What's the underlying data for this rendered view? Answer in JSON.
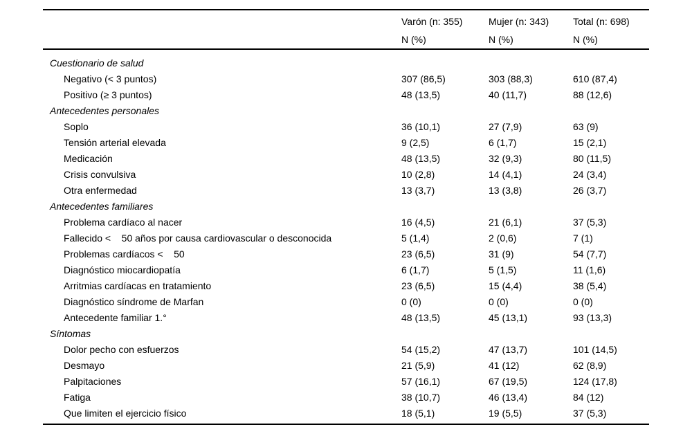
{
  "table": {
    "columns": [
      {
        "title": "Varón (n: 355)",
        "subtitle": "N (%)"
      },
      {
        "title": "Mujer (n: 343)",
        "subtitle": "N (%)"
      },
      {
        "title": "Total (n: 698)",
        "subtitle": "N (%)"
      }
    ],
    "rows": [
      {
        "type": "section",
        "label": "Cuestionario de salud",
        "values": [
          "",
          "",
          ""
        ]
      },
      {
        "type": "item",
        "label": "Negativo (< 3 puntos)",
        "values": [
          "307 (86,5)",
          "303 (88,3)",
          "610 (87,4)"
        ]
      },
      {
        "type": "item",
        "label": "Positivo (≥ 3 puntos)",
        "values": [
          "48 (13,5)",
          "40 (11,7)",
          "88 (12,6)"
        ]
      },
      {
        "type": "section",
        "label": "Antecedentes personales",
        "values": [
          "",
          "",
          ""
        ]
      },
      {
        "type": "item",
        "label": "Soplo",
        "values": [
          "36 (10,1)",
          "27 (7,9)",
          "63 (9)"
        ]
      },
      {
        "type": "item",
        "label": "Tensión arterial elevada",
        "values": [
          "9 (2,5)",
          "6 (1,7)",
          "15 (2,1)"
        ]
      },
      {
        "type": "item",
        "label": "Medicación",
        "values": [
          "48 (13,5)",
          "32 (9,3)",
          "80 (11,5)"
        ]
      },
      {
        "type": "item",
        "label": "Crisis convulsiva",
        "values": [
          "10 (2,8)",
          "14 (4,1)",
          "24 (3,4)"
        ]
      },
      {
        "type": "item",
        "label": "Otra enfermedad",
        "values": [
          "13 (3,7)",
          "13 (3,8)",
          "26 (3,7)"
        ]
      },
      {
        "type": "section",
        "label": "Antecedentes familiares",
        "values": [
          "",
          "",
          ""
        ]
      },
      {
        "type": "item",
        "label": "Problema cardíaco al nacer",
        "values": [
          "16 (4,5)",
          "21 (6,1)",
          "37 (5,3)"
        ]
      },
      {
        "type": "item",
        "label": "Fallecido <    50 años por causa cardiovascular o desconocida",
        "values": [
          "5 (1,4)",
          "2 (0,6)",
          "7 (1)"
        ]
      },
      {
        "type": "item",
        "label": "Problemas cardíacos <    50",
        "values": [
          "23 (6,5)",
          "31 (9)",
          "54 (7,7)"
        ]
      },
      {
        "type": "item",
        "label": "Diagnóstico miocardiopatía",
        "values": [
          "6 (1,7)",
          "5 (1,5)",
          "11 (1,6)"
        ]
      },
      {
        "type": "item",
        "label": "Arritmias cardíacas en tratamiento",
        "values": [
          "23 (6,5)",
          "15 (4,4)",
          "38 (5,4)"
        ]
      },
      {
        "type": "item",
        "label": "Diagnóstico síndrome de Marfan",
        "values": [
          "0 (0)",
          "0 (0)",
          "0 (0)"
        ]
      },
      {
        "type": "item",
        "label": "Antecedente familiar 1.°",
        "values": [
          "48 (13,5)",
          "45 (13,1)",
          "93 (13,3)"
        ]
      },
      {
        "type": "section",
        "label": "Síntomas",
        "values": [
          "",
          "",
          ""
        ]
      },
      {
        "type": "item",
        "label": "Dolor pecho con esfuerzos",
        "values": [
          "54 (15,2)",
          "47 (13,7)",
          "101 (14,5)"
        ]
      },
      {
        "type": "item",
        "label": "Desmayo",
        "values": [
          "21 (5,9)",
          "41 (12)",
          "62 (8,9)"
        ]
      },
      {
        "type": "item",
        "label": "Palpitaciones",
        "values": [
          "57 (16,1)",
          "67 (19,5)",
          "124 (17,8)"
        ]
      },
      {
        "type": "item",
        "label": "Fatiga",
        "values": [
          "38 (10,7)",
          "46 (13,4)",
          "84 (12)"
        ]
      },
      {
        "type": "item",
        "label": "Que limiten el ejercicio físico",
        "values": [
          "18 (5,1)",
          "19 (5,5)",
          "37 (5,3)"
        ]
      }
    ],
    "colors": {
      "text": "#000000",
      "rule": "#000000",
      "background": "#ffffff"
    }
  }
}
